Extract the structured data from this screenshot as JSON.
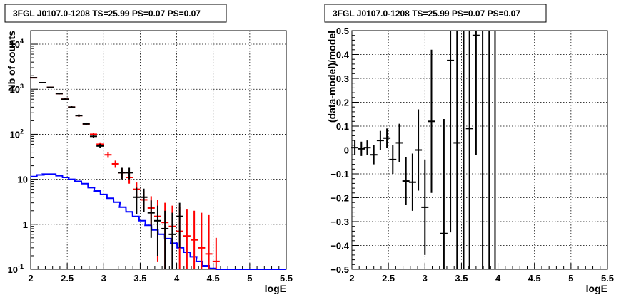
{
  "chart_data": [
    {
      "type": "line",
      "title": "3FGL J0107.0-1208 TS=25.99 PS=0.07 PS=0.07",
      "xlabel": "logE",
      "ylabel": "Nb of counts",
      "xlim": [
        2,
        5.5
      ],
      "ylim": [
        0.1,
        20000
      ],
      "yscale": "log",
      "grid": true,
      "x_ticks": [
        "2",
        "2.5",
        "3",
        "3.5",
        "4",
        "4.5",
        "5",
        "5.5"
      ],
      "y_ticks": [
        {
          "base": "10",
          "exp": "-1",
          "value": 0.1
        },
        {
          "base": "1",
          "exp": "",
          "value": 1
        },
        {
          "base": "10",
          "exp": "",
          "value": 10
        },
        {
          "base": "10",
          "exp": "2",
          "value": 100
        },
        {
          "base": "10",
          "exp": "3",
          "value": 1000
        },
        {
          "base": "10",
          "exp": "4",
          "value": 10000
        }
      ],
      "series": [
        {
          "style": "step",
          "color": "#0000ff",
          "bin_width": 0.0875,
          "x": [
            2.04,
            2.13,
            2.21,
            2.3,
            2.39,
            2.48,
            2.56,
            2.65,
            2.74,
            2.83,
            2.91,
            3.0,
            3.09,
            3.18,
            3.26,
            3.35,
            3.44,
            3.53,
            3.61,
            3.7,
            3.79,
            3.88,
            3.96,
            4.05,
            4.14,
            4.23,
            4.31,
            4.4,
            4.49,
            4.58,
            4.66,
            4.75,
            4.84,
            4.93,
            5.01,
            5.1,
            5.19,
            5.28,
            5.36,
            5.45
          ],
          "y": [
            11.5,
            12.5,
            13,
            13,
            12,
            11,
            10,
            9,
            8,
            6.5,
            5.5,
            4.6,
            3.8,
            3.1,
            2.4,
            1.9,
            1.5,
            1.2,
            0.95,
            0.75,
            0.6,
            0.48,
            0.38,
            0.3,
            0.24,
            0.19,
            0.15,
            0.12,
            0.105,
            0.1,
            0.1,
            0.1,
            0.1,
            0.1,
            0.1,
            0.1,
            0.1,
            0.1,
            0.1,
            0.1
          ]
        },
        {
          "style": "errorbar",
          "color": "#ff0000",
          "x": [
            2.04,
            2.16,
            2.27,
            2.39,
            2.47,
            2.56,
            2.66,
            2.76,
            2.86,
            2.95,
            3.06,
            3.16,
            3.25,
            3.35,
            3.45,
            3.55,
            3.65,
            3.74,
            3.84,
            3.94,
            4.04,
            4.14,
            4.24,
            4.34,
            4.44,
            4.54
          ],
          "y": [
            1800,
            1400,
            1100,
            800,
            600,
            400,
            260,
            170,
            100,
            60,
            35,
            22,
            14,
            11,
            6,
            3.5,
            2.3,
            1.5,
            1.1,
            0.9,
            0.7,
            0.55,
            0.45,
            0.3,
            0.22,
            0.15
          ],
          "yerr_low": [
            1750,
            1360,
            1070,
            770,
            575,
            380,
            245,
            158,
            92,
            54,
            30,
            18,
            10.5,
            8,
            3.8,
            1.9,
            0.95,
            0.15,
            0,
            0,
            0,
            0,
            0,
            0,
            0,
            0
          ],
          "yerr_high": [
            1850,
            1440,
            1130,
            830,
            625,
            420,
            275,
            182,
            108,
            66,
            40,
            26,
            17.5,
            14,
            8.5,
            5.5,
            4.2,
            3.5,
            3.0,
            2.6,
            2.4,
            2.2,
            2.0,
            1.8,
            1.6,
            0.5
          ]
        },
        {
          "style": "errorbar",
          "color": "#000000",
          "x": [
            2.04,
            2.16,
            2.27,
            2.39,
            2.47,
            2.56,
            2.66,
            2.76,
            2.86,
            2.95,
            3.25,
            3.35,
            3.45,
            3.55,
            3.65,
            3.74,
            3.84,
            3.94,
            4.04
          ],
          "y": [
            1800,
            1400,
            1100,
            800,
            600,
            400,
            260,
            170,
            90,
            55,
            14,
            14,
            4,
            4,
            1.8,
            1.2,
            0.8,
            0.6,
            1.5
          ],
          "yerr_low": [
            1750,
            1360,
            1070,
            770,
            575,
            380,
            245,
            158,
            82,
            49,
            10,
            10,
            1.7,
            1.9,
            0.5,
            0.2,
            0,
            0,
            0.3
          ],
          "yerr_high": [
            1850,
            1440,
            1130,
            830,
            625,
            420,
            275,
            182,
            98,
            61,
            18,
            18,
            6.5,
            6.2,
            3.4,
            2.6,
            2.0,
            1.8,
            3.0
          ]
        }
      ]
    },
    {
      "type": "scatter",
      "title": "3FGL J0107.0-1208 TS=25.99 PS=0.07 PS=0.07",
      "xlabel": "logE",
      "ylabel": "(data-model)/model",
      "xlim": [
        2,
        5.5
      ],
      "ylim": [
        -0.5,
        0.5
      ],
      "grid": true,
      "x_ticks": [
        "2",
        "2.5",
        "3",
        "3.5",
        "4",
        "4.5",
        "5",
        "5.5"
      ],
      "y_ticks": [
        "−0.5",
        "−0.4",
        "−0.3",
        "−0.2",
        "−0.1",
        "0",
        "0.1",
        "0.2",
        "0.3",
        "0.4",
        "0.5"
      ],
      "series": [
        {
          "color": "#000000",
          "x": [
            2.04,
            2.13,
            2.21,
            2.3,
            2.39,
            2.48,
            2.56,
            2.65,
            2.74,
            2.83,
            2.91,
            3.0,
            3.09,
            3.18,
            3.26,
            3.35,
            3.44,
            3.53,
            3.61,
            3.7,
            3.79,
            3.88,
            3.96
          ],
          "y": [
            0.01,
            0.005,
            0.01,
            -0.02,
            0.04,
            0.05,
            -0.04,
            0.03,
            -0.13,
            -0.135,
            0.0,
            -0.24,
            0.12,
            null,
            -0.35,
            0.375,
            0.03,
            null,
            0.09,
            0.48,
            null,
            null,
            null
          ],
          "yerr": [
            0.03,
            0.03,
            0.03,
            0.04,
            0.04,
            0.04,
            0.06,
            0.08,
            0.1,
            0.12,
            0.17,
            0.2,
            0.3,
            null,
            0.48,
            0.72,
            0.7,
            null,
            0.6,
            0.5,
            null,
            null,
            null
          ]
        }
      ]
    }
  ]
}
